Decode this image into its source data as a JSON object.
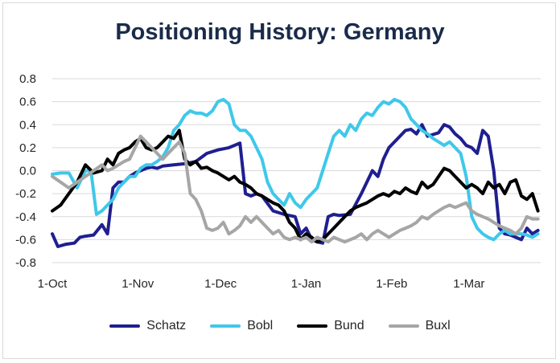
{
  "chart_data": {
    "type": "line",
    "title": "Positioning History: Germany",
    "xlabel": "",
    "ylabel": "",
    "ylim": [
      -0.8,
      0.8
    ],
    "yticks": [
      "0.8",
      "0.6",
      "0.4",
      "0.2",
      "0.0",
      "-0.2",
      "-0.4",
      "-0.6",
      "-0.8"
    ],
    "ytick_values": [
      0.8,
      0.6,
      0.4,
      0.2,
      0.0,
      -0.2,
      -0.4,
      -0.6,
      -0.8
    ],
    "xlim": [
      0,
      177
    ],
    "xticks": [
      {
        "label": "1-Oct",
        "day": 0
      },
      {
        "label": "1-Nov",
        "day": 31
      },
      {
        "label": "1-Dec",
        "day": 61
      },
      {
        "label": "1-Jan",
        "day": 92
      },
      {
        "label": "1-Feb",
        "day": 123
      },
      {
        "label": "1-Mar",
        "day": 151
      }
    ],
    "series": [
      {
        "name": "Schatz",
        "color": "#1f1f8f",
        "x": [
          0,
          2,
          5,
          8,
          10,
          12,
          15,
          18,
          20,
          22,
          24,
          26,
          28,
          30,
          32,
          34,
          36,
          38,
          40,
          44,
          48,
          52,
          56,
          60,
          64,
          68,
          70,
          72,
          74,
          76,
          80,
          84,
          88,
          90,
          92,
          94,
          96,
          98,
          100,
          102,
          104,
          108,
          112,
          116,
          118,
          120,
          122,
          124,
          126,
          128,
          130,
          132,
          134,
          136,
          140,
          142,
          144,
          146,
          148,
          150,
          152,
          154,
          156,
          158,
          160,
          162,
          164,
          166,
          168,
          170,
          172,
          174,
          176
        ],
        "y": [
          -0.55,
          -0.66,
          -0.64,
          -0.63,
          -0.58,
          -0.57,
          -0.56,
          -0.47,
          -0.55,
          -0.15,
          -0.1,
          -0.1,
          -0.05,
          -0.02,
          0.0,
          0.02,
          0.03,
          0.02,
          0.04,
          0.05,
          0.06,
          0.08,
          0.15,
          0.18,
          0.2,
          0.24,
          -0.2,
          -0.22,
          -0.2,
          -0.22,
          -0.35,
          -0.38,
          -0.4,
          -0.55,
          -0.5,
          -0.6,
          -0.62,
          -0.63,
          -0.4,
          -0.38,
          -0.39,
          -0.38,
          -0.2,
          0.0,
          -0.05,
          0.1,
          0.2,
          0.25,
          0.3,
          0.35,
          0.36,
          0.32,
          0.4,
          0.3,
          0.33,
          0.4,
          0.38,
          0.32,
          0.28,
          0.22,
          0.2,
          0.15,
          0.35,
          0.3,
          0.0,
          -0.5,
          -0.55,
          -0.56,
          -0.58,
          -0.6,
          -0.5,
          -0.55,
          -0.52
        ]
      },
      {
        "name": "Bobl",
        "color": "#3fc8ea",
        "x": [
          0,
          3,
          6,
          9,
          12,
          14,
          16,
          18,
          20,
          22,
          24,
          26,
          28,
          30,
          32,
          34,
          36,
          38,
          40,
          42,
          44,
          46,
          48,
          50,
          52,
          54,
          56,
          58,
          60,
          62,
          64,
          66,
          68,
          70,
          72,
          74,
          76,
          78,
          80,
          82,
          84,
          86,
          88,
          90,
          92,
          94,
          96,
          98,
          100,
          102,
          104,
          106,
          108,
          110,
          112,
          114,
          116,
          118,
          120,
          122,
          124,
          126,
          128,
          130,
          132,
          134,
          136,
          138,
          140,
          142,
          144,
          146,
          148,
          150,
          152,
          154,
          156,
          158,
          160,
          162,
          164,
          166,
          168,
          170,
          172,
          174,
          176
        ],
        "y": [
          -0.03,
          -0.02,
          -0.02,
          -0.15,
          0.0,
          0.0,
          -0.38,
          -0.35,
          -0.3,
          -0.25,
          -0.15,
          -0.1,
          -0.05,
          -0.05,
          0.02,
          0.05,
          0.05,
          0.08,
          0.12,
          0.2,
          0.35,
          0.4,
          0.48,
          0.52,
          0.5,
          0.5,
          0.48,
          0.52,
          0.6,
          0.62,
          0.58,
          0.4,
          0.35,
          0.35,
          0.3,
          0.2,
          0.1,
          -0.1,
          -0.2,
          -0.25,
          -0.3,
          -0.2,
          -0.28,
          -0.32,
          -0.25,
          -0.2,
          -0.15,
          0.0,
          0.15,
          0.3,
          0.35,
          0.3,
          0.4,
          0.35,
          0.45,
          0.5,
          0.48,
          0.55,
          0.6,
          0.58,
          0.62,
          0.6,
          0.55,
          0.45,
          0.4,
          0.35,
          0.32,
          0.28,
          0.25,
          0.22,
          0.25,
          0.2,
          0.15,
          -0.05,
          -0.4,
          -0.5,
          -0.55,
          -0.58,
          -0.6,
          -0.55,
          -0.52,
          -0.55,
          -0.55,
          -0.55,
          -0.56,
          -0.58,
          -0.55
        ]
      },
      {
        "name": "Bund",
        "color": "#000000",
        "x": [
          0,
          3,
          6,
          9,
          12,
          15,
          18,
          20,
          22,
          24,
          26,
          28,
          30,
          32,
          34,
          36,
          38,
          40,
          42,
          44,
          46,
          48,
          50,
          52,
          54,
          56,
          58,
          60,
          62,
          64,
          66,
          68,
          70,
          72,
          74,
          76,
          78,
          80,
          82,
          84,
          86,
          88,
          90,
          92,
          94,
          96,
          98,
          100,
          102,
          104,
          106,
          108,
          110,
          112,
          114,
          116,
          118,
          120,
          122,
          124,
          126,
          128,
          130,
          132,
          134,
          136,
          138,
          140,
          142,
          144,
          146,
          148,
          150,
          152,
          154,
          156,
          158,
          160,
          162,
          164,
          166,
          168,
          170,
          172,
          174,
          176
        ],
        "y": [
          -0.35,
          -0.3,
          -0.2,
          -0.1,
          0.05,
          -0.02,
          0.0,
          0.1,
          0.05,
          0.15,
          0.18,
          0.2,
          0.25,
          0.28,
          0.2,
          0.18,
          0.2,
          0.25,
          0.3,
          0.28,
          0.35,
          0.1,
          0.05,
          0.08,
          0.02,
          0.03,
          0.0,
          -0.02,
          -0.05,
          -0.08,
          -0.05,
          -0.1,
          -0.12,
          -0.15,
          -0.2,
          -0.22,
          -0.25,
          -0.28,
          -0.3,
          -0.35,
          -0.45,
          -0.5,
          -0.6,
          -0.55,
          -0.58,
          -0.62,
          -0.6,
          -0.55,
          -0.5,
          -0.45,
          -0.4,
          -0.35,
          -0.32,
          -0.3,
          -0.28,
          -0.25,
          -0.22,
          -0.2,
          -0.22,
          -0.18,
          -0.2,
          -0.15,
          -0.18,
          -0.2,
          -0.1,
          -0.15,
          -0.12,
          -0.05,
          0.02,
          0.0,
          -0.05,
          -0.1,
          -0.15,
          -0.12,
          -0.15,
          -0.2,
          -0.1,
          -0.15,
          -0.12,
          -0.2,
          -0.1,
          -0.08,
          -0.22,
          -0.25,
          -0.2,
          -0.35
        ]
      },
      {
        "name": "Buxl",
        "color": "#a6a6a6",
        "x": [
          0,
          3,
          6,
          9,
          12,
          15,
          18,
          20,
          22,
          24,
          26,
          28,
          30,
          32,
          34,
          36,
          38,
          40,
          42,
          44,
          46,
          48,
          50,
          52,
          54,
          56,
          58,
          60,
          62,
          64,
          66,
          68,
          70,
          72,
          74,
          76,
          78,
          80,
          82,
          84,
          86,
          88,
          90,
          92,
          94,
          96,
          98,
          100,
          102,
          104,
          106,
          108,
          110,
          112,
          114,
          116,
          118,
          120,
          122,
          124,
          126,
          128,
          130,
          132,
          134,
          136,
          138,
          140,
          142,
          144,
          146,
          148,
          150,
          152,
          154,
          156,
          158,
          160,
          162,
          164,
          166,
          168,
          170,
          172,
          174,
          176
        ],
        "y": [
          -0.05,
          -0.1,
          -0.15,
          -0.1,
          -0.05,
          0.0,
          0.05,
          0.0,
          0.02,
          0.05,
          0.08,
          0.1,
          0.2,
          0.3,
          0.25,
          0.2,
          0.15,
          0.1,
          0.15,
          0.2,
          0.25,
          0.15,
          -0.2,
          -0.25,
          -0.35,
          -0.5,
          -0.52,
          -0.5,
          -0.45,
          -0.55,
          -0.52,
          -0.48,
          -0.4,
          -0.45,
          -0.4,
          -0.45,
          -0.5,
          -0.55,
          -0.52,
          -0.58,
          -0.6,
          -0.58,
          -0.6,
          -0.58,
          -0.62,
          -0.58,
          -0.6,
          -0.62,
          -0.58,
          -0.6,
          -0.62,
          -0.6,
          -0.58,
          -0.55,
          -0.6,
          -0.55,
          -0.52,
          -0.55,
          -0.58,
          -0.55,
          -0.52,
          -0.5,
          -0.48,
          -0.45,
          -0.4,
          -0.42,
          -0.38,
          -0.35,
          -0.32,
          -0.3,
          -0.32,
          -0.3,
          -0.28,
          -0.35,
          -0.38,
          -0.4,
          -0.42,
          -0.45,
          -0.48,
          -0.5,
          -0.52,
          -0.55,
          -0.5,
          -0.4,
          -0.42,
          -0.42
        ]
      }
    ],
    "legend_position": "bottom"
  }
}
